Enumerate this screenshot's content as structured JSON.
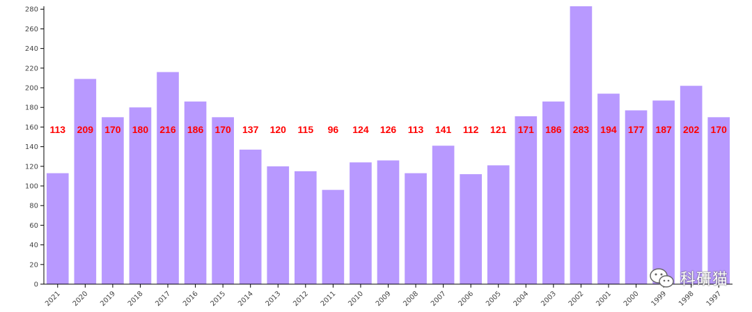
{
  "chart_data": {
    "type": "bar",
    "categories": [
      "2021",
      "2020",
      "2019",
      "2018",
      "2017",
      "2016",
      "2015",
      "2014",
      "2013",
      "2012",
      "2011",
      "2010",
      "2009",
      "2008",
      "2007",
      "2006",
      "2005",
      "2004",
      "2003",
      "2002",
      "2001",
      "2000",
      "1999",
      "1998",
      "1997"
    ],
    "values": [
      113,
      209,
      170,
      180,
      216,
      186,
      170,
      137,
      120,
      115,
      96,
      124,
      126,
      113,
      141,
      112,
      121,
      171,
      186,
      283,
      194,
      177,
      187,
      202,
      170
    ],
    "ylim": [
      0,
      283
    ],
    "yticks": [
      0,
      20,
      40,
      60,
      80,
      100,
      120,
      140,
      160,
      180,
      200,
      220,
      240,
      260,
      280
    ],
    "bar_color": "#b899ff",
    "label_color": "#ff0000",
    "label_level": 160,
    "grid": false,
    "xlabel": "",
    "ylabel": ""
  },
  "watermark": {
    "text": "科研猫",
    "icon": "wechat-icon"
  }
}
